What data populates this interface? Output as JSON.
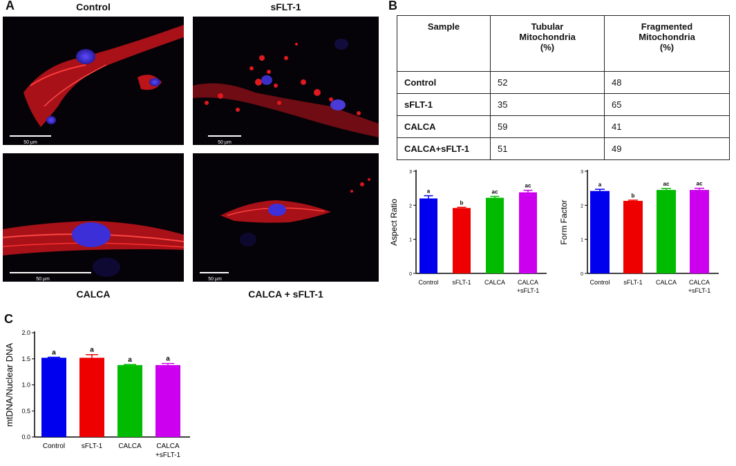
{
  "panels": {
    "A": {
      "letter": "A",
      "images": [
        {
          "label": "Control",
          "scale_bar": "50 µm"
        },
        {
          "label": "sFLT-1",
          "scale_bar": "50 µm"
        },
        {
          "label": "CALCA",
          "scale_bar": "50 µm"
        },
        {
          "label": "CALCA + sFLT-1",
          "scale_bar": "50 µm"
        }
      ]
    },
    "B": {
      "letter": "B",
      "table": {
        "headers": [
          "Sample",
          "Tubular\nMitochondria\n(%)",
          "Fragmented\nMitochondria\n(%)"
        ],
        "rows": [
          [
            "Control",
            "52",
            "48"
          ],
          [
            "sFLT-1",
            "35",
            "65"
          ],
          [
            "CALCA",
            "59",
            "41"
          ],
          [
            "CALCA+sFLT-1",
            "51",
            "49"
          ]
        ]
      }
    },
    "C": {
      "letter": "C"
    }
  },
  "chart_data": [
    {
      "id": "aspect_ratio",
      "type": "bar",
      "categories": [
        "Control",
        "sFLT-1",
        "CALCA",
        "CALCA\n+sFLT-1"
      ],
      "values": [
        2.2,
        1.92,
        2.22,
        2.38
      ],
      "errors": [
        0.08,
        0.02,
        0.04,
        0.06
      ],
      "sig_labels": [
        "a",
        "b",
        "ac",
        "ac"
      ],
      "colors": [
        "#0000ee",
        "#ee0000",
        "#00bb00",
        "#cc00ee"
      ],
      "ylabel": "Aspect Ratio",
      "ylim": [
        0,
        3
      ],
      "yticks": [
        "0",
        "1",
        "2",
        "3"
      ]
    },
    {
      "id": "form_factor",
      "type": "bar",
      "categories": [
        "Control",
        "sFLT-1",
        "CALCA",
        "CALCA\n+sFLT-1"
      ],
      "values": [
        2.42,
        2.13,
        2.45,
        2.45
      ],
      "errors": [
        0.05,
        0.02,
        0.04,
        0.05
      ],
      "sig_labels": [
        "a",
        "b",
        "ac",
        "ac"
      ],
      "colors": [
        "#0000ee",
        "#ee0000",
        "#00bb00",
        "#cc00ee"
      ],
      "ylabel": "Form Factor",
      "ylim": [
        0,
        3
      ],
      "yticks": [
        "0",
        "1",
        "2",
        "3"
      ]
    },
    {
      "id": "mtdna",
      "type": "bar",
      "categories": [
        "Control",
        "sFLT-1",
        "CALCA",
        "CALCA\n+sFLT-1"
      ],
      "values": [
        1.52,
        1.52,
        1.38,
        1.38
      ],
      "errors": [
        0.01,
        0.06,
        0.01,
        0.03
      ],
      "sig_labels": [
        "a",
        "a",
        "a",
        "a"
      ],
      "colors": [
        "#0000ee",
        "#ee0000",
        "#00bb00",
        "#cc00ee"
      ],
      "ylabel": "mtDNA/Nuclear DNA",
      "ylim": [
        0,
        2
      ],
      "yticks": [
        "0.0",
        "0.5",
        "1.0",
        "1.5",
        "2.0"
      ]
    }
  ]
}
